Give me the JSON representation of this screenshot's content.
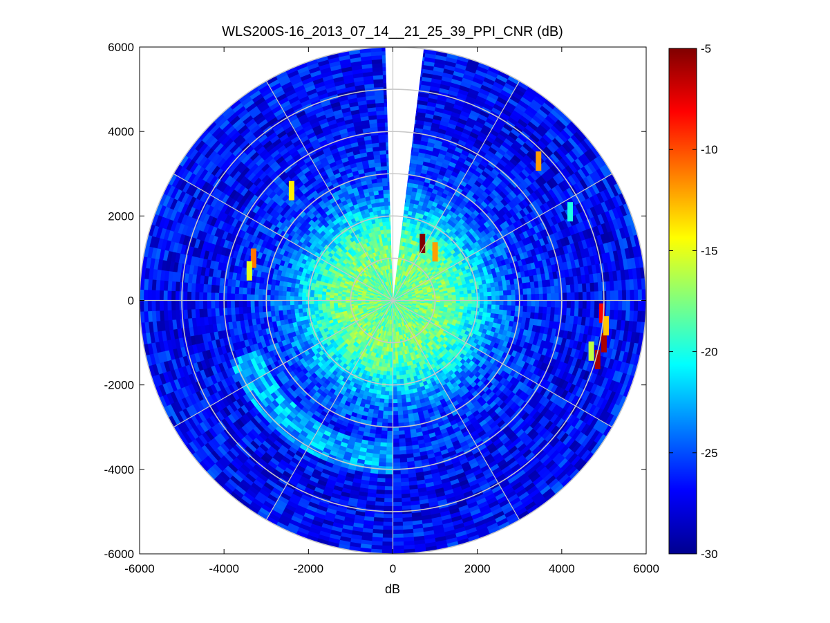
{
  "chart_data": {
    "type": "polar-ppi-heatmap",
    "title": "WLS200S-16_2013_07_14__21_25_39_PPI_CNR (dB)",
    "xlabel": "dB",
    "ylabel": "",
    "xlim": [
      -6000,
      6000
    ],
    "ylim": [
      -6000,
      6000
    ],
    "x_ticks": [
      -6000,
      -4000,
      -2000,
      0,
      2000,
      4000,
      6000
    ],
    "y_ticks": [
      -6000,
      -4000,
      -2000,
      0,
      2000,
      4000,
      6000
    ],
    "max_range": 6000,
    "range_rings": [
      1000,
      2000,
      3000,
      4000,
      5000,
      6000
    ],
    "azimuth_spokes_deg": [
      0,
      30,
      60,
      90,
      120,
      150,
      180,
      210,
      240,
      270,
      300,
      330
    ],
    "missing_sector_deg": [
      0,
      7
    ],
    "colorbar": {
      "min": -30,
      "max": -5,
      "ticks": [
        -5,
        -10,
        -15,
        -20,
        -25,
        -30
      ],
      "colormap": "jet"
    },
    "cnr_profile": {
      "range_m": [
        0,
        500,
        1000,
        1500,
        2000,
        2500,
        3000,
        3500,
        4000,
        4500,
        5000,
        5500,
        6000
      ],
      "mean_cnr_db": [
        -18.5,
        -18.0,
        -17.5,
        -18.5,
        -21.0,
        -24.0,
        -25.5,
        -26.0,
        -26.5,
        -27.0,
        -27.0,
        -26.8,
        -26.5
      ]
    },
    "hotspots": [
      {
        "x": 5000,
        "y": -1000,
        "value": -6
      },
      {
        "x": 4950,
        "y": -300,
        "value": -8
      },
      {
        "x": 5050,
        "y": -600,
        "value": -13
      },
      {
        "x": 4700,
        "y": -1200,
        "value": -16
      },
      {
        "x": 4850,
        "y": -1400,
        "value": -6
      },
      {
        "x": 700,
        "y": 1350,
        "value": -5
      },
      {
        "x": 1000,
        "y": 1150,
        "value": -12
      },
      {
        "x": -3300,
        "y": 1000,
        "value": -11
      },
      {
        "x": -3400,
        "y": 700,
        "value": -15
      },
      {
        "x": -2400,
        "y": 2600,
        "value": -14
      },
      {
        "x": 3450,
        "y": 3300,
        "value": -12
      },
      {
        "x": 4200,
        "y": 2100,
        "value": -20
      }
    ]
  },
  "colors": {
    "grid": "#c8c8c8",
    "axes": "#000000",
    "background": "#ffffff",
    "missing_sector": "#ffffff"
  }
}
